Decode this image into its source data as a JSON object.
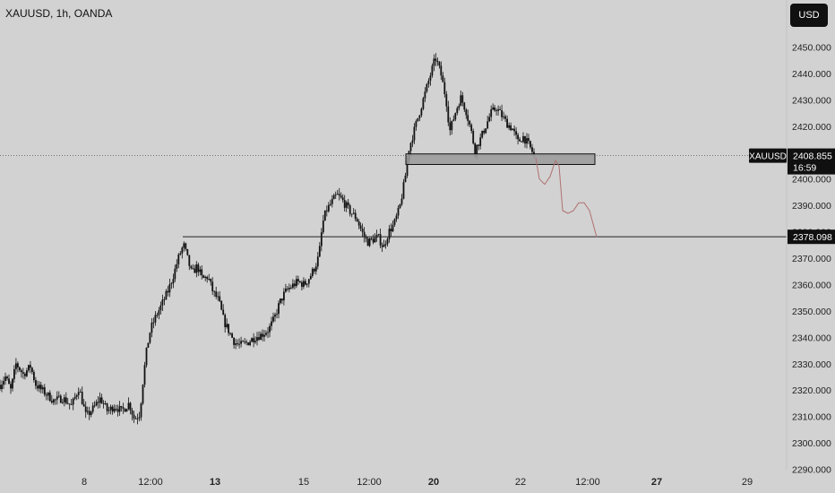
{
  "header": {
    "title": "XAUUSD, 1h, OANDA",
    "currency_button": "USD"
  },
  "price_tags": {
    "symbol": "XAUUSD",
    "last_price": "2408.855",
    "countdown": "16:59",
    "level_price": "2378.098"
  },
  "colors": {
    "background": "#d2d2d2",
    "candles": "#111111",
    "zone_fill": "#9a9a9a",
    "projection": "#b07070",
    "tag_dark": "#101010"
  },
  "chart_data": {
    "type": "candlestick",
    "title": "",
    "xlabel": "",
    "ylabel": "",
    "ylim": [
      2288,
      2458
    ],
    "grid": false,
    "y_ticks": [
      "2290.000",
      "2300.000",
      "2310.000",
      "2320.000",
      "2330.000",
      "2340.000",
      "2350.000",
      "2360.000",
      "2370.000",
      "2380.000",
      "2390.000",
      "2400.000",
      "2410.000",
      "2420.000",
      "2430.000",
      "2440.000",
      "2450.000"
    ],
    "x_ticks": [
      "8",
      "12:00",
      "13",
      "15",
      "12:00",
      "20",
      "22",
      "12:00",
      "27",
      "29"
    ],
    "bold_x_ticks": [
      "13",
      "20",
      "27"
    ],
    "price_path": [
      [
        0,
        2322
      ],
      [
        6,
        2325
      ],
      [
        12,
        2320
      ],
      [
        18,
        2330
      ],
      [
        26,
        2326
      ],
      [
        34,
        2329
      ],
      [
        40,
        2322
      ],
      [
        50,
        2319
      ],
      [
        60,
        2316
      ],
      [
        70,
        2317
      ],
      [
        80,
        2314
      ],
      [
        88,
        2321
      ],
      [
        96,
        2310
      ],
      [
        104,
        2313
      ],
      [
        112,
        2317
      ],
      [
        120,
        2312
      ],
      [
        128,
        2314
      ],
      [
        136,
        2312
      ],
      [
        144,
        2315
      ],
      [
        150,
        2309
      ],
      [
        156,
        2311
      ],
      [
        160,
        2325
      ],
      [
        164,
        2336
      ],
      [
        168,
        2343
      ],
      [
        174,
        2348
      ],
      [
        180,
        2352
      ],
      [
        188,
        2358
      ],
      [
        194,
        2364
      ],
      [
        200,
        2371
      ],
      [
        205,
        2375
      ],
      [
        210,
        2369
      ],
      [
        214,
        2364
      ],
      [
        220,
        2367
      ],
      [
        226,
        2362
      ],
      [
        232,
        2363
      ],
      [
        238,
        2357
      ],
      [
        244,
        2354
      ],
      [
        250,
        2346
      ],
      [
        256,
        2342
      ],
      [
        262,
        2338
      ],
      [
        268,
        2337
      ],
      [
        276,
        2338
      ],
      [
        284,
        2340
      ],
      [
        292,
        2341
      ],
      [
        300,
        2343
      ],
      [
        306,
        2347
      ],
      [
        312,
        2353
      ],
      [
        318,
        2357
      ],
      [
        324,
        2359
      ],
      [
        332,
        2361
      ],
      [
        340,
        2360
      ],
      [
        346,
        2363
      ],
      [
        352,
        2367
      ],
      [
        356,
        2371
      ],
      [
        360,
        2383
      ],
      [
        364,
        2388
      ],
      [
        370,
        2391
      ],
      [
        376,
        2394
      ],
      [
        382,
        2392
      ],
      [
        390,
        2388
      ],
      [
        398,
        2385
      ],
      [
        404,
        2380
      ],
      [
        410,
        2376
      ],
      [
        416,
        2377
      ],
      [
        422,
        2378
      ],
      [
        428,
        2374
      ],
      [
        434,
        2380
      ],
      [
        440,
        2383
      ],
      [
        446,
        2389
      ],
      [
        452,
        2400
      ],
      [
        456,
        2411
      ],
      [
        462,
        2418
      ],
      [
        468,
        2425
      ],
      [
        474,
        2432
      ],
      [
        480,
        2439
      ],
      [
        486,
        2446
      ],
      [
        492,
        2440
      ],
      [
        498,
        2430
      ],
      [
        502,
        2418
      ],
      [
        508,
        2425
      ],
      [
        514,
        2431
      ],
      [
        520,
        2426
      ],
      [
        526,
        2418
      ],
      [
        530,
        2411
      ],
      [
        536,
        2415
      ],
      [
        542,
        2420
      ],
      [
        548,
        2425
      ],
      [
        554,
        2427
      ],
      [
        560,
        2424
      ],
      [
        566,
        2421
      ],
      [
        572,
        2419
      ],
      [
        578,
        2414
      ],
      [
        584,
        2416
      ],
      [
        590,
        2413
      ],
      [
        596,
        2409
      ]
    ],
    "candle_count": 300,
    "x_bar_range": [
      0,
      596
    ],
    "horizontal_levels": [
      {
        "price": 2408.855,
        "label": "2408.855",
        "style": "dotted"
      },
      {
        "price": 2378.098,
        "label": "2378.098",
        "style": "solid"
      }
    ],
    "resistance_zone": {
      "price_top": 2409.5,
      "price_bottom": 2405.5
    },
    "projection_path": [
      [
        598,
        2408
      ],
      [
        602,
        2400
      ],
      [
        608,
        2398
      ],
      [
        614,
        2401
      ],
      [
        620,
        2407
      ],
      [
        624,
        2405
      ],
      [
        628,
        2388
      ],
      [
        634,
        2387
      ],
      [
        640,
        2388
      ],
      [
        646,
        2391
      ],
      [
        652,
        2391
      ],
      [
        658,
        2388
      ],
      [
        662,
        2383
      ],
      [
        666,
        2378
      ]
    ]
  }
}
